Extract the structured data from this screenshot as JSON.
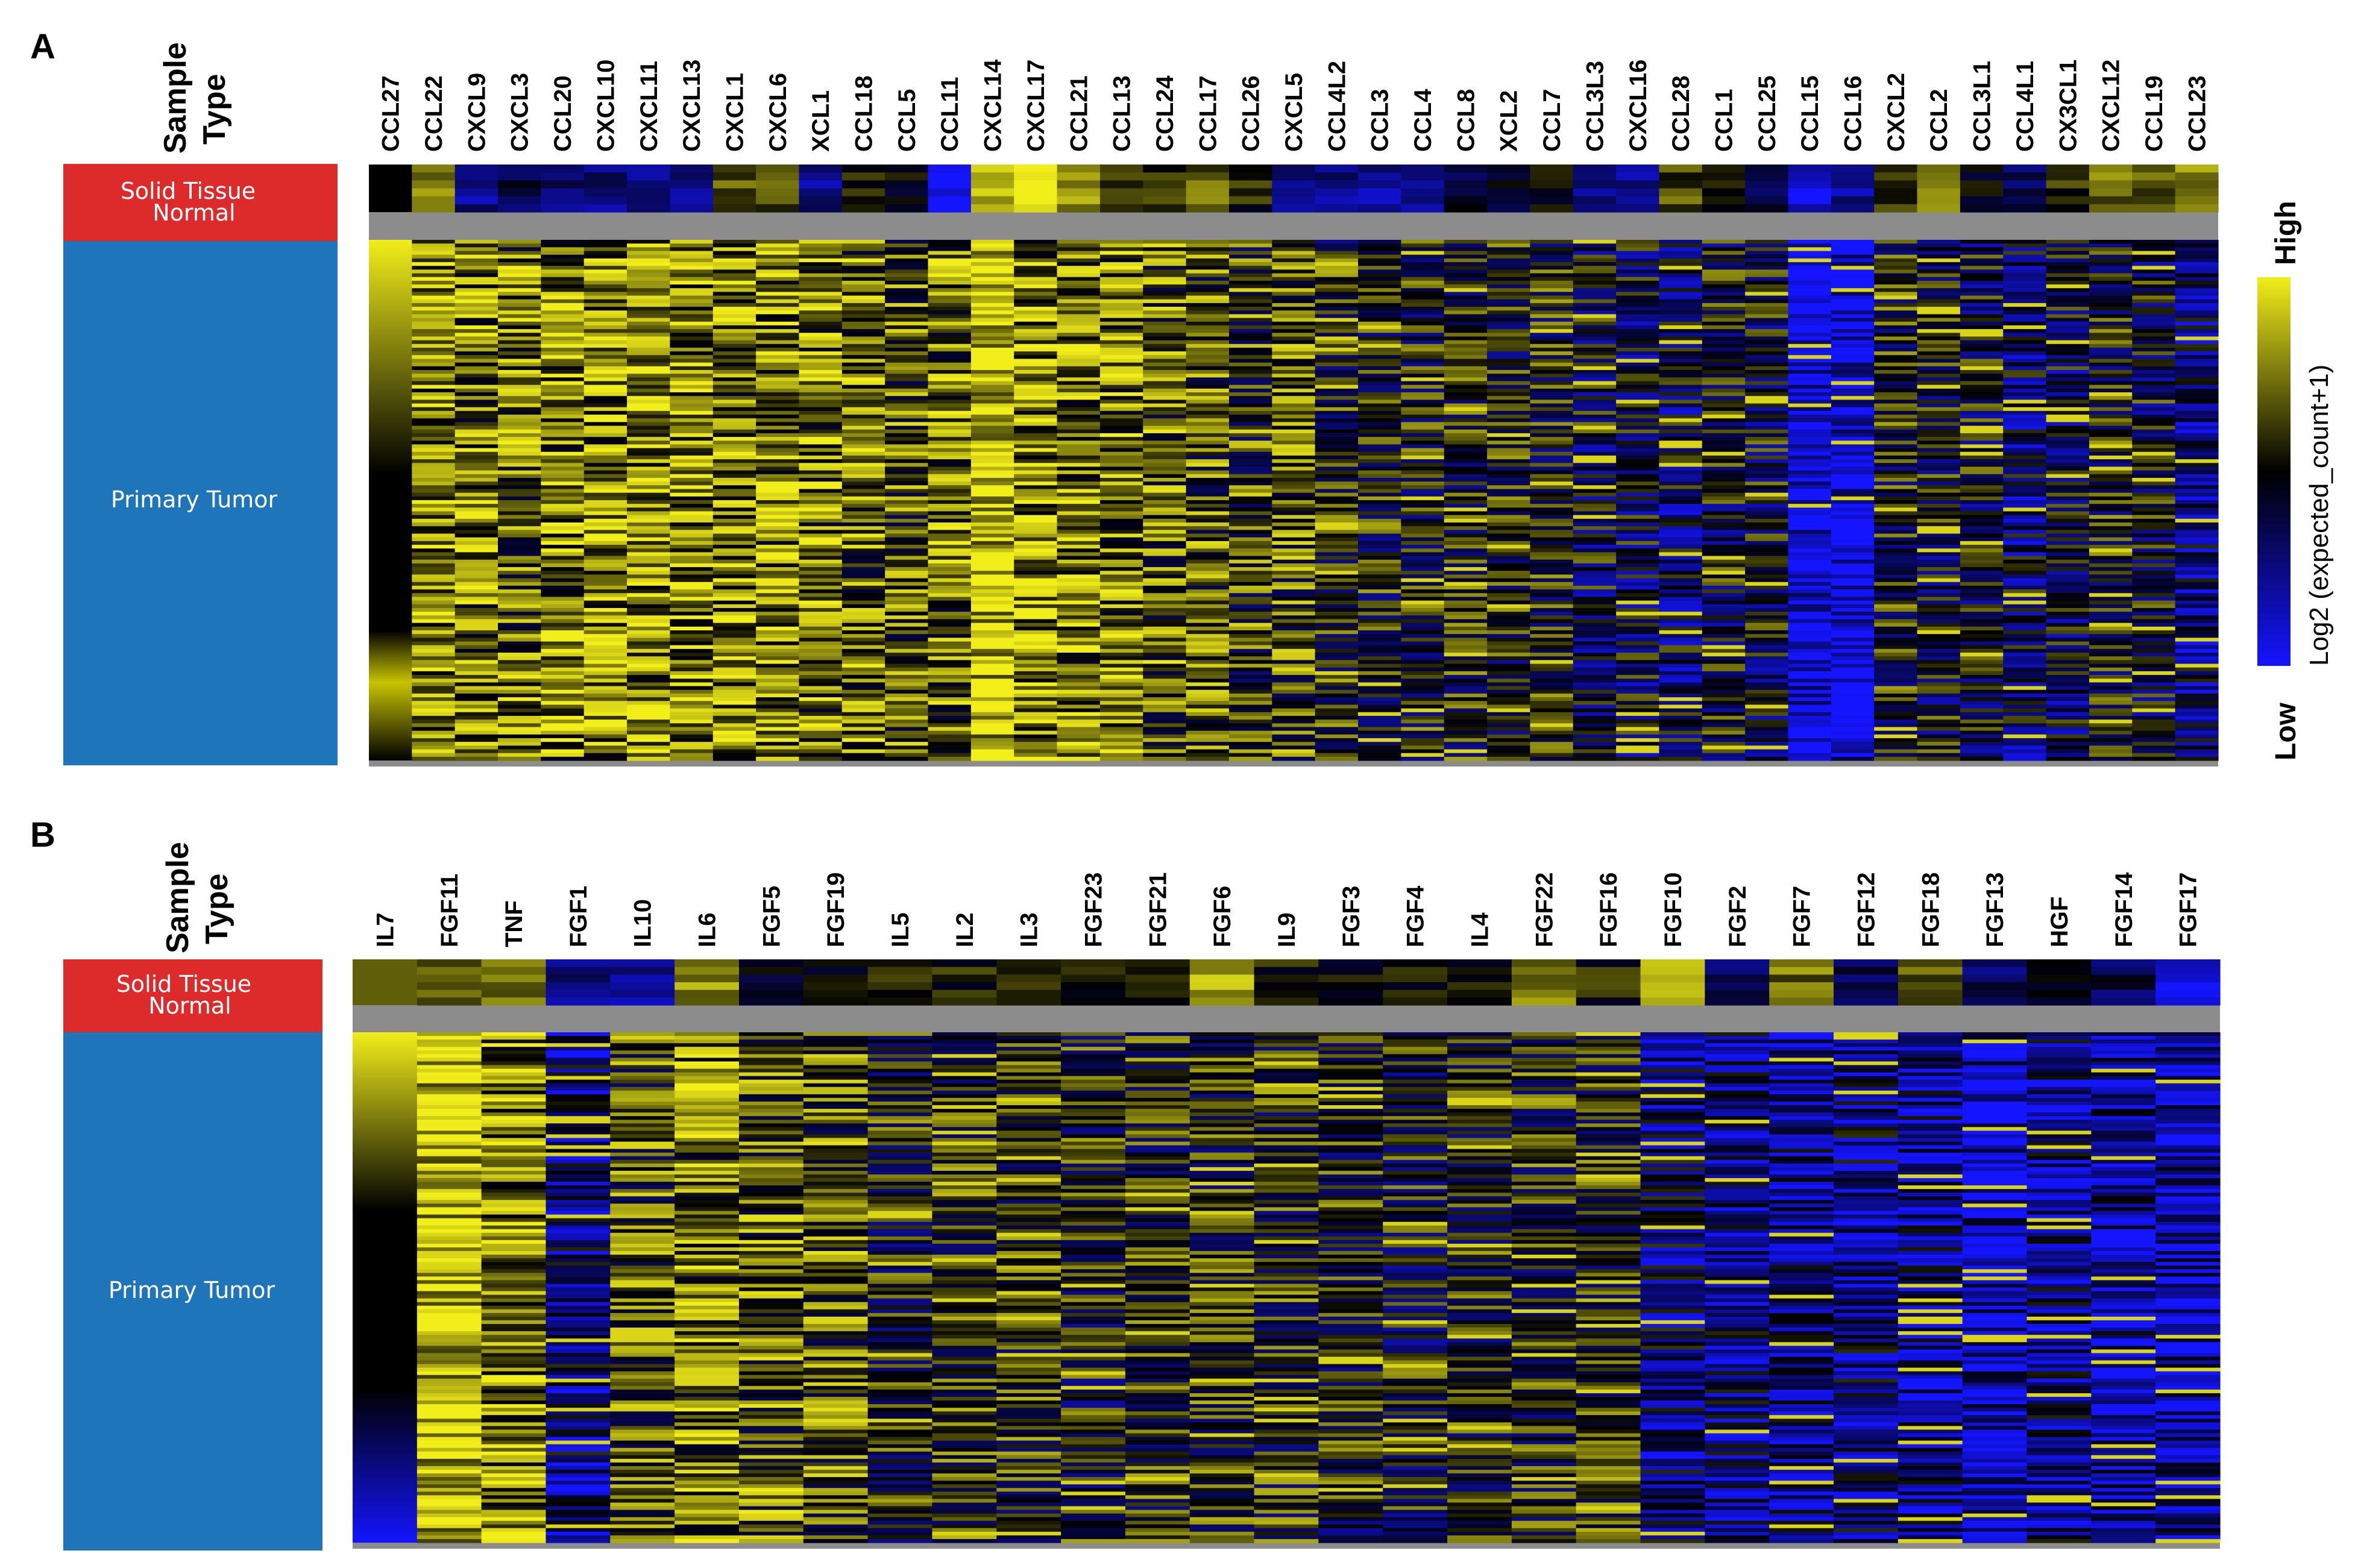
{
  "colors": {
    "high": "#f2ee1a",
    "mid": "#000000",
    "low": "#1414ff",
    "gap": "#8c8c8c",
    "normal_group": "#dd2a2a",
    "tumor_group": "#1f75b9"
  },
  "legend": {
    "high_label": "High",
    "low_label": "Low",
    "title": "Log2 (expected_count+1)"
  },
  "chart_data": [
    {
      "type": "heatmap",
      "panel": "A",
      "sample_type_label": [
        "Sample",
        "Type"
      ],
      "groups": [
        "Solid Tissue Normal",
        "Primary Tumor"
      ],
      "genes": [
        "CCL27",
        "CCL22",
        "CXCL9",
        "CXCL3",
        "CCL20",
        "CXCL10",
        "CXCL11",
        "CXCL13",
        "CXCL1",
        "CXCL6",
        "XCL1",
        "CCL18",
        "CCL5",
        "CCL11",
        "CXCL14",
        "CXCL17",
        "CCL21",
        "CCL13",
        "CCL24",
        "CCL17",
        "CCL26",
        "CXCL5",
        "CCL4L2",
        "CCL3",
        "CCL4",
        "CCL8",
        "XCL2",
        "CCL7",
        "CCL3L3",
        "CXCL16",
        "CCL28",
        "CCL1",
        "CCL25",
        "CCL15",
        "CCL16",
        "CXCL2",
        "CCL2",
        "CCL3L1",
        "CCL4L1",
        "CX3CL1",
        "CXCL12",
        "CCL19",
        "CCL23"
      ],
      "normal_level": [
        0.0,
        0.45,
        -0.55,
        -0.3,
        -0.45,
        -0.5,
        -0.55,
        -0.5,
        0.35,
        0.3,
        -0.55,
        0.15,
        -0.05,
        -0.9,
        0.8,
        1.0,
        0.6,
        0.3,
        0.2,
        0.4,
        0.1,
        -0.55,
        -0.5,
        -0.55,
        -0.5,
        -0.2,
        -0.15,
        -0.1,
        -0.6,
        -0.55,
        0.3,
        0.2,
        -0.2,
        -0.85,
        -0.55,
        0.25,
        0.5,
        -0.1,
        -0.3,
        0.2,
        0.45,
        0.35,
        0.6
      ],
      "tumor_level": [
        0.0,
        0.55,
        0.45,
        0.4,
        0.5,
        0.55,
        0.55,
        0.55,
        0.5,
        0.45,
        0.45,
        0.4,
        0.3,
        0.4,
        0.9,
        0.55,
        0.5,
        0.45,
        0.35,
        0.3,
        0.2,
        0.3,
        0.1,
        0.05,
        0.05,
        0.05,
        0.05,
        0.05,
        -0.15,
        -0.2,
        -0.25,
        -0.05,
        -0.1,
        -0.95,
        -0.95,
        0.05,
        -0.05,
        -0.1,
        -0.3,
        -0.2,
        0.05,
        -0.1,
        -0.45
      ]
    },
    {
      "type": "heatmap",
      "panel": "B",
      "sample_type_label": [
        "Sample",
        "Type"
      ],
      "groups": [
        "Solid Tissue Normal",
        "Primary Tumor"
      ],
      "genes": [
        "IL7",
        "FGF11",
        "TNF",
        "FGF1",
        "IL10",
        "IL6",
        "FGF5",
        "FGF19",
        "IL5",
        "IL2",
        "IL3",
        "FGF23",
        "FGF21",
        "FGF6",
        "IL9",
        "FGF3",
        "FGF4",
        "IL4",
        "FGF22",
        "FGF16",
        "FGF10",
        "FGF2",
        "FGF7",
        "FGF12",
        "FGF18",
        "FGF13",
        "HGF",
        "FGF14",
        "FGF17"
      ],
      "normal_level": [
        0.0,
        0.35,
        0.35,
        -0.55,
        -0.6,
        0.6,
        -0.05,
        0.05,
        0.1,
        0.1,
        0.1,
        0.15,
        0.2,
        0.7,
        0.05,
        0.05,
        0.0,
        0.0,
        0.5,
        0.1,
        0.85,
        -0.4,
        0.45,
        -0.25,
        0.3,
        -0.35,
        0.05,
        -0.3,
        -0.85
      ],
      "tumor_level": [
        0.0,
        0.9,
        0.5,
        -0.45,
        0.25,
        0.45,
        0.35,
        0.3,
        0.05,
        0.15,
        0.15,
        0.05,
        0.1,
        0.1,
        0.1,
        0.05,
        0.0,
        0.05,
        0.1,
        0.15,
        -0.4,
        -0.5,
        -0.55,
        -0.45,
        -0.55,
        -0.75,
        -0.5,
        -0.6,
        -0.7
      ]
    }
  ]
}
